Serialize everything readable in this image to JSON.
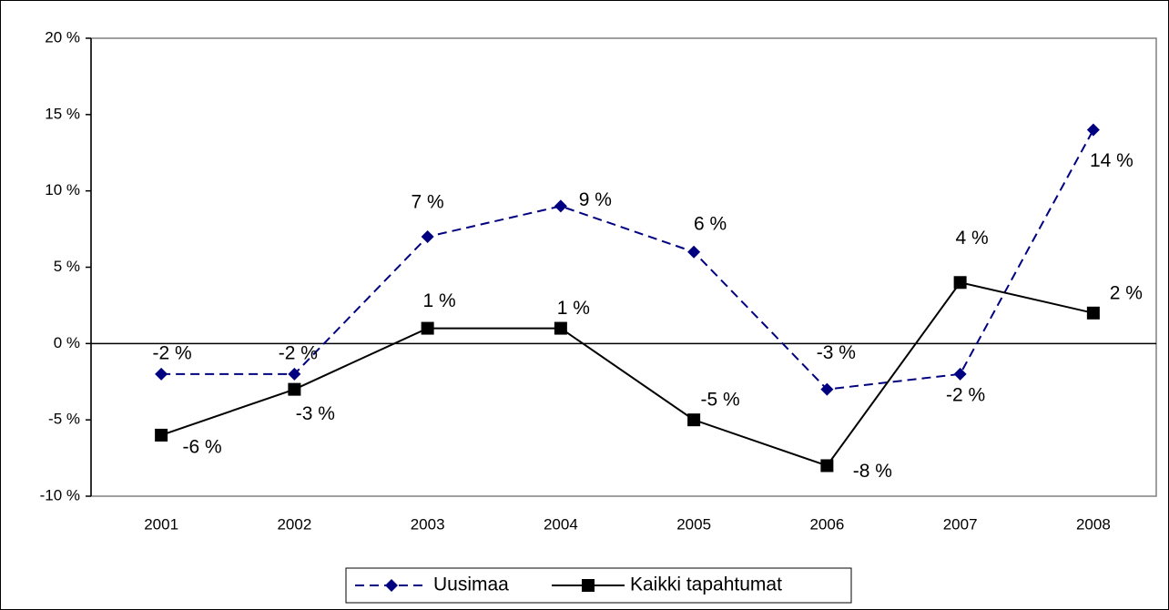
{
  "chart_data": {
    "type": "line",
    "categories": [
      "2001",
      "2002",
      "2003",
      "2004",
      "2005",
      "2006",
      "2007",
      "2008"
    ],
    "series": [
      {
        "name": "Uusimaa",
        "color": "#000080",
        "dashed": true,
        "marker": "diamond",
        "values": [
          -2,
          -2,
          7,
          9,
          6,
          -3,
          -2,
          14
        ],
        "value_labels": [
          "-2 %",
          "-2 %",
          "7 %",
          "9 %",
          "6 %",
          "-3 %",
          "-2 %",
          "14 %"
        ]
      },
      {
        "name": "Kaikki tapahtumat",
        "color": "#000000",
        "dashed": false,
        "marker": "square",
        "values": [
          -6,
          -3,
          1,
          1,
          -5,
          -8,
          4,
          2
        ],
        "value_labels": [
          "-6 %",
          "-3 %",
          "1 %",
          "1 %",
          "-5 %",
          "-8 %",
          "4 %",
          "2 %"
        ]
      }
    ],
    "ylim": [
      -10,
      20
    ],
    "yticks": [
      {
        "value": -10,
        "label": "-10 %"
      },
      {
        "value": -5,
        "label": "-5 %"
      },
      {
        "value": 0,
        "label": "0 %"
      },
      {
        "value": 5,
        "label": "5 %"
      },
      {
        "value": 10,
        "label": "10 %"
      },
      {
        "value": 15,
        "label": "15 %"
      },
      {
        "value": 20,
        "label": "20 %"
      }
    ],
    "legend": "bottom"
  }
}
